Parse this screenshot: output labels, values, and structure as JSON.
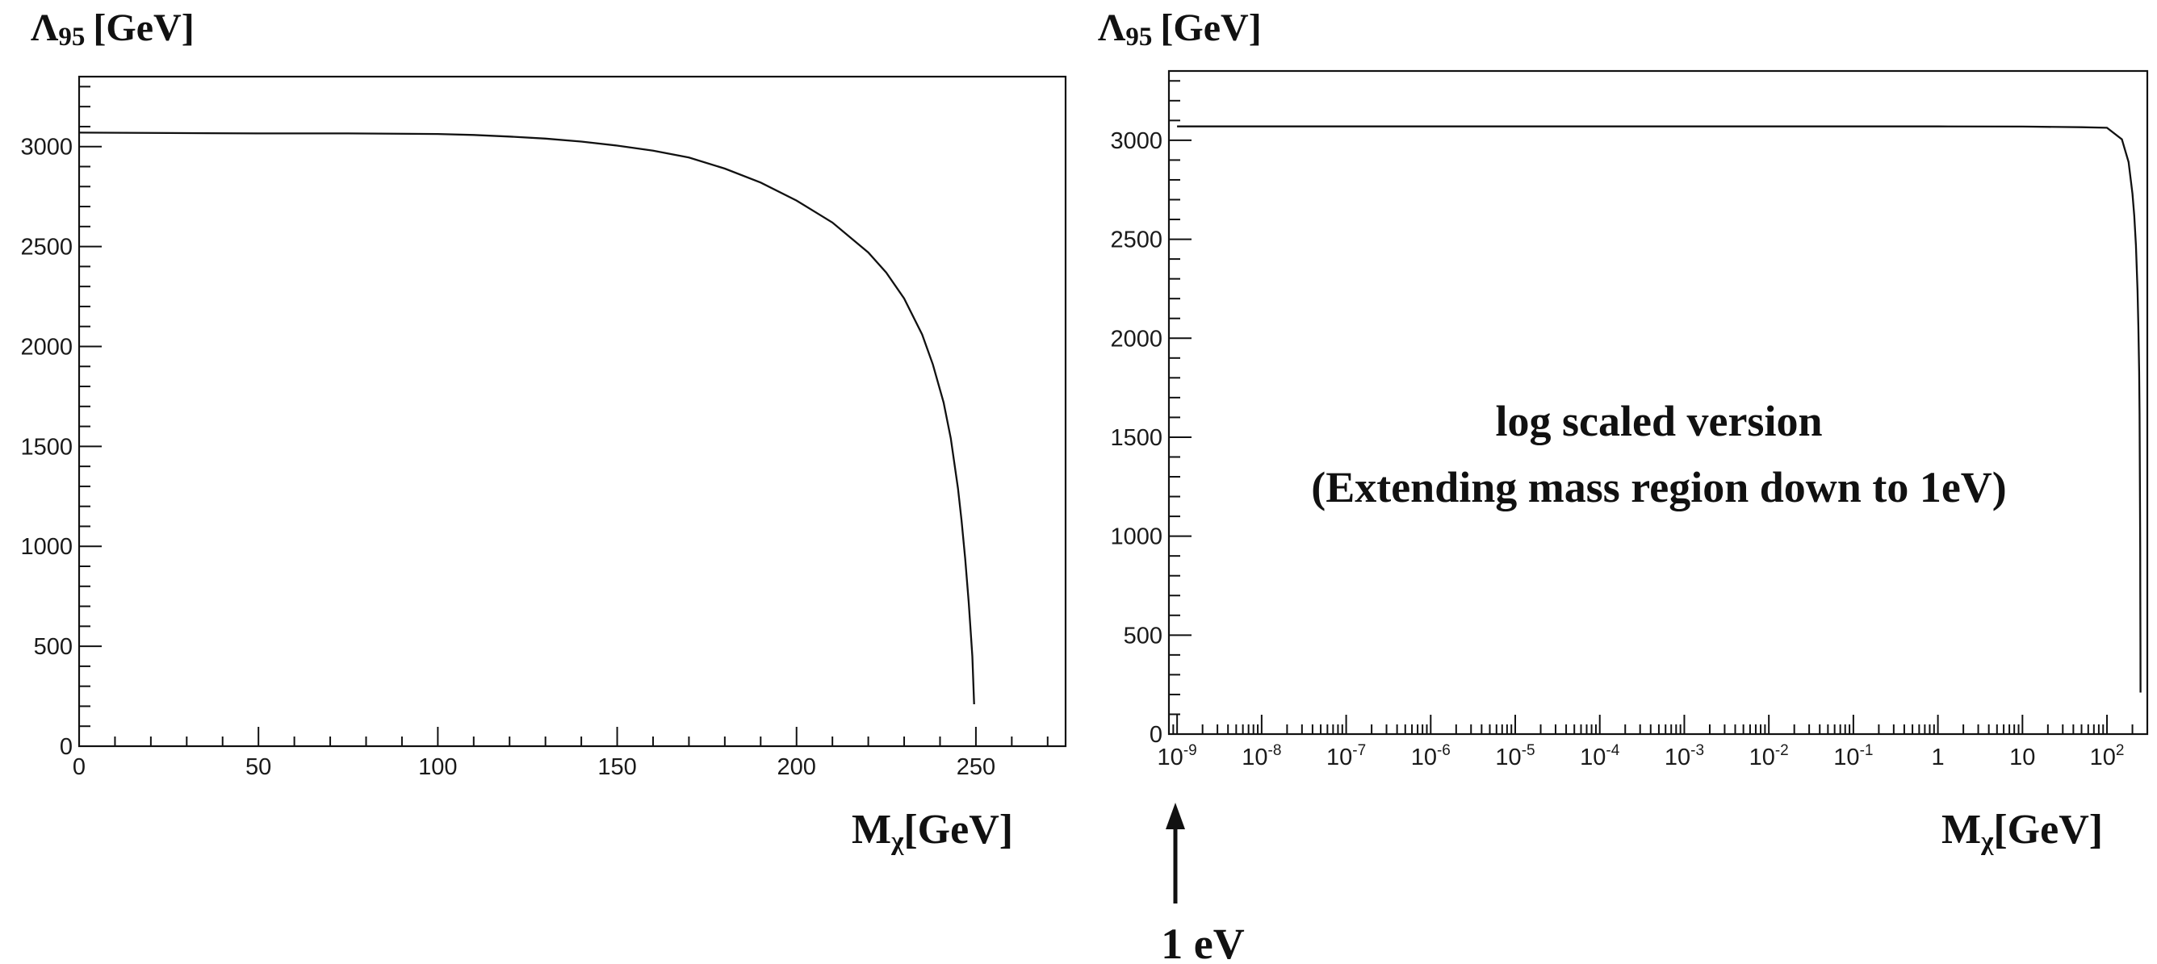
{
  "chart_data": [
    {
      "type": "line",
      "ylabel": "Λ95 [GeV]",
      "ylabel_symbol": "Λ",
      "ylabel_subscript": "95",
      "ylabel_unit": "[GeV]",
      "xlabel": "Mχ[GeV]",
      "xlabel_symbol": "M",
      "xlabel_subscript": "χ",
      "xlabel_unit": "[GeV]",
      "x_scale": "linear",
      "xlim": [
        0,
        275
      ],
      "ylim": [
        0,
        3350
      ],
      "x_ticks": [
        0,
        50,
        100,
        150,
        200,
        250
      ],
      "y_ticks": [
        0,
        500,
        1000,
        1500,
        2000,
        2500,
        3000
      ],
      "x_tick_labels": [
        "0",
        "50",
        "100",
        "150",
        "200",
        "250"
      ],
      "y_tick_labels": [
        "0",
        "500",
        "1000",
        "1500",
        "2000",
        "2500",
        "3000"
      ],
      "grid": false,
      "series": [
        {
          "x": [
            0,
            25,
            50,
            75,
            100,
            110,
            120,
            130,
            140,
            150,
            160,
            170,
            180,
            190,
            200,
            210,
            220,
            225,
            230,
            235,
            238,
            241,
            243,
            245,
            246,
            247,
            248,
            249,
            249.5
          ],
          "y": [
            3070,
            3068,
            3066,
            3066,
            3063,
            3058,
            3050,
            3040,
            3025,
            3005,
            2980,
            2945,
            2890,
            2820,
            2730,
            2620,
            2470,
            2370,
            2240,
            2060,
            1910,
            1720,
            1540,
            1290,
            1130,
            940,
            720,
            450,
            210
          ]
        }
      ]
    },
    {
      "type": "line",
      "ylabel": "Λ95 [GeV]",
      "ylabel_symbol": "Λ",
      "ylabel_subscript": "95",
      "ylabel_unit": "[GeV]",
      "xlabel": "Mχ[GeV]",
      "xlabel_symbol": "M",
      "xlabel_subscript": "χ",
      "xlabel_unit": "[GeV]",
      "x_scale": "log",
      "xlim": [
        8e-10,
        300
      ],
      "ylim": [
        0,
        3350
      ],
      "x_tick_labels": [
        "10",
        "10",
        "10",
        "10",
        "10",
        "10",
        "10",
        "10",
        "10",
        "1",
        "10",
        "10"
      ],
      "x_tick_exponents": [
        "-9",
        "-8",
        "-7",
        "-6",
        "-5",
        "-4",
        "-3",
        "-2",
        "-1",
        "",
        "",
        "2"
      ],
      "y_ticks": [
        0,
        500,
        1000,
        1500,
        2000,
        2500,
        3000
      ],
      "y_tick_labels": [
        "0",
        "500",
        "1000",
        "1500",
        "2000",
        "2500",
        "3000"
      ],
      "grid": false,
      "annotation": [
        "log scaled version",
        "(Extending mass region down to 1eV)"
      ],
      "arrow_label": "1 eV",
      "series": [
        {
          "x": [
            1e-09,
            1e-06,
            0.001,
            1,
            10,
            50,
            100,
            150,
            180,
            200,
            210,
            220,
            230,
            235,
            240,
            243,
            245,
            247,
            248,
            249,
            249.5
          ],
          "y": [
            3070,
            3070,
            3070,
            3070,
            3069,
            3066,
            3063,
            3005,
            2890,
            2730,
            2620,
            2470,
            2240,
            2060,
            1830,
            1620,
            1290,
            940,
            720,
            450,
            210
          ]
        }
      ]
    }
  ],
  "colors": {
    "line": "#111111",
    "frame": "#111111",
    "background": "#ffffff"
  }
}
